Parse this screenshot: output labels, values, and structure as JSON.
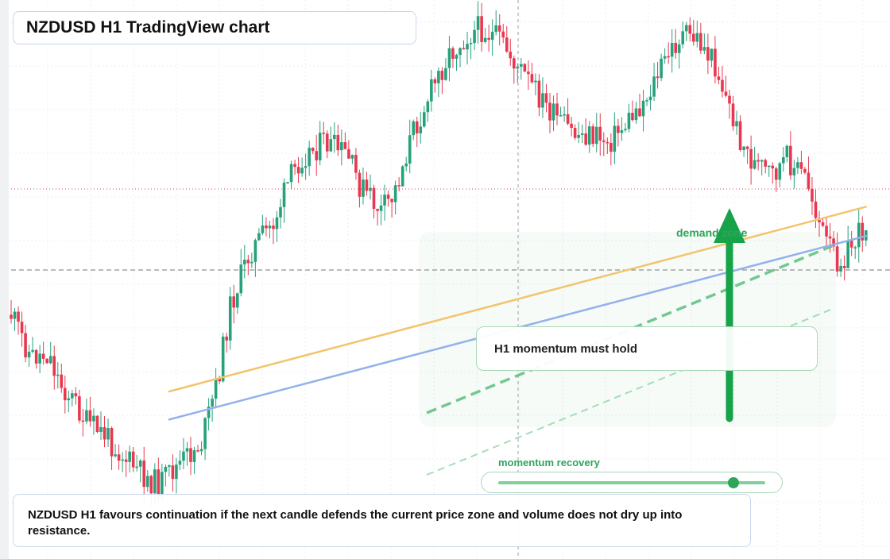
{
  "title": "NZDUSD H1 TradingView chart",
  "annotations": {
    "zone_label": "demand zone",
    "note": "H1 momentum must hold",
    "slider_label": "momentum recovery"
  },
  "caption": "NZDUSD H1 favours continuation if the next candle defends the current price zone and volume does not dry up into resistance.",
  "slider": {
    "value": 0.88
  },
  "colors": {
    "up": "#26a17b",
    "down": "#e8384f",
    "ma_fast": "#f2c46d",
    "ma_slow": "#93b2ea",
    "zone": "#2ea55a",
    "price_line": "#e8384f"
  },
  "chart_data": {
    "type": "candlestick",
    "symbol": "NZDUSD",
    "timeframe": "H1",
    "close_path": [
      [
        0,
        0.583
      ],
      [
        0.7,
        0.632
      ],
      [
        1.1,
        0.661
      ],
      [
        2.1,
        0.655
      ],
      [
        2.7,
        0.709
      ],
      [
        3.6,
        0.748
      ],
      [
        4.2,
        0.783
      ],
      [
        5.2,
        0.805
      ],
      [
        6.4,
        0.851
      ],
      [
        7.3,
        0.879
      ],
      [
        8.2,
        0.898
      ],
      [
        9.5,
        0.856
      ],
      [
        10.6,
        0.819
      ],
      [
        11.5,
        0.705
      ],
      [
        12.2,
        0.568
      ],
      [
        13.3,
        0.466
      ],
      [
        14.6,
        0.413
      ],
      [
        15.5,
        0.333
      ],
      [
        16.2,
        0.289
      ],
      [
        17.4,
        0.264
      ],
      [
        18.7,
        0.287
      ],
      [
        19.4,
        0.343
      ],
      [
        20.6,
        0.392
      ],
      [
        21.3,
        0.362
      ],
      [
        22.3,
        0.251
      ],
      [
        23.2,
        0.182
      ],
      [
        24.3,
        0.104
      ],
      [
        25.3,
        0.068
      ],
      [
        26.1,
        0.051
      ],
      [
        27.2,
        0.075
      ],
      [
        28.3,
        0.128
      ],
      [
        29.1,
        0.165
      ],
      [
        30.2,
        0.216
      ],
      [
        31.4,
        0.25
      ],
      [
        32.1,
        0.249
      ],
      [
        33.3,
        0.261
      ],
      [
        34.3,
        0.227
      ],
      [
        35.4,
        0.178
      ],
      [
        36.4,
        0.113
      ],
      [
        37.3,
        0.066
      ],
      [
        38.2,
        0.072
      ],
      [
        39.2,
        0.12
      ],
      [
        40.4,
        0.242
      ],
      [
        41.3,
        0.304
      ],
      [
        42.4,
        0.326
      ],
      [
        43.2,
        0.295
      ],
      [
        44.3,
        0.333
      ],
      [
        45.3,
        0.445
      ],
      [
        46.1,
        0.485
      ],
      [
        47,
        0.446
      ],
      [
        47.7,
        0.411
      ]
    ],
    "moving_averages": [
      {
        "color": "orange",
        "from": [
          8.8,
          0.725
        ],
        "to": [
          47.6,
          0.383
        ]
      },
      {
        "color": "blue",
        "from": [
          8.8,
          0.777
        ],
        "to": [
          47.6,
          0.437
        ]
      }
    ],
    "price_lines": [
      {
        "style": "dotted",
        "color": "red",
        "level": 0.35
      },
      {
        "style": "dashed",
        "color": "gray",
        "level": 0.5
      }
    ]
  }
}
